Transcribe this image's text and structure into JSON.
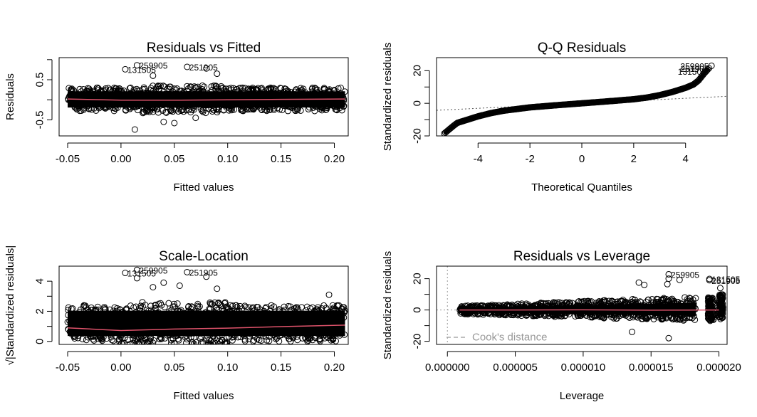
{
  "chart_data": [
    {
      "type": "scatter",
      "title": "Residuals vs Fitted",
      "xlabel": "Fitted values",
      "ylabel": "Residuals",
      "xlim": [
        -0.058,
        0.213
      ],
      "ylim": [
        -0.9,
        1.05
      ],
      "xticks": [
        -0.05,
        0.0,
        0.05,
        0.1,
        0.15,
        0.2
      ],
      "xtick_labels": [
        "-0.05",
        "0.00",
        "0.05",
        "0.10",
        "0.15",
        "0.20"
      ],
      "yticks": [
        -0.5,
        0,
        0.5,
        1.0
      ],
      "ytick_labels": [
        "-0.5",
        "",
        "0.5",
        ""
      ],
      "grid": false,
      "mass": {
        "x_range": [
          -0.05,
          0.21
        ],
        "band": [
          -0.28,
          0.3
        ],
        "spread_boost": [
          0.02,
          0.1
        ]
      },
      "outliers": [
        {
          "x": 0.015,
          "y": 0.86,
          "label": "259905"
        },
        {
          "x": 0.004,
          "y": 0.76,
          "label": "131505"
        },
        {
          "x": 0.062,
          "y": 0.82,
          "label": "251905"
        },
        {
          "x": 0.013,
          "y": -0.74,
          "label": ""
        },
        {
          "x": 0.04,
          "y": -0.55,
          "label": ""
        },
        {
          "x": 0.05,
          "y": -0.58,
          "label": ""
        },
        {
          "x": 0.07,
          "y": -0.45,
          "label": ""
        },
        {
          "x": 0.09,
          "y": 0.65,
          "label": ""
        },
        {
          "x": 0.08,
          "y": 0.78,
          "label": ""
        },
        {
          "x": 0.03,
          "y": 0.6,
          "label": ""
        }
      ],
      "smooth_line": {
        "color": "#df536b",
        "x": [
          -0.05,
          0.0,
          0.05,
          0.1,
          0.15,
          0.21
        ],
        "y": [
          0.02,
          -0.01,
          -0.01,
          0.0,
          0.01,
          0.02
        ]
      }
    },
    {
      "type": "scatter",
      "title": "Q-Q Residuals",
      "xlabel": "Theoretical Quantiles",
      "ylabel": "Standardized residuals",
      "xlim": [
        -5.6,
        5.6
      ],
      "ylim": [
        -20,
        28
      ],
      "xticks": [
        -4,
        -2,
        0,
        2,
        4
      ],
      "xtick_labels": [
        "-4",
        "-2",
        "0",
        "2",
        "4"
      ],
      "yticks": [
        -20,
        -10,
        0,
        10,
        20
      ],
      "ytick_labels": [
        "-20",
        "",
        "0",
        "",
        "20"
      ],
      "grid": false,
      "reference_line": {
        "style": "dotted",
        "color": "#555555",
        "x": [
          -5.6,
          5.6
        ],
        "y": [
          -4.3,
          4.3
        ]
      },
      "qq_curve": {
        "x": [
          -5.3,
          -5.0,
          -4.8,
          -4.5,
          -4.0,
          -3.5,
          -3.0,
          -2.5,
          -2.0,
          -1.0,
          0.0,
          1.0,
          2.0,
          2.5,
          3.0,
          3.5,
          4.0,
          4.3,
          4.5,
          4.7,
          4.9
        ],
        "y": [
          -18.5,
          -14.5,
          -12.0,
          -10.5,
          -8.0,
          -6.0,
          -4.5,
          -3.5,
          -2.5,
          -1.2,
          0.0,
          1.2,
          2.5,
          3.5,
          5.0,
          7.0,
          9.5,
          11.5,
          14.0,
          18.0,
          21.5
        ]
      },
      "outliers": [
        {
          "x": 5.0,
          "y": 23.0,
          "label": ""
        }
      ],
      "point_labels": [
        {
          "x": 3.8,
          "y": 22.5,
          "text": "259905"
        },
        {
          "x": 3.8,
          "y": 21.0,
          "text": "251905"
        },
        {
          "x": 3.7,
          "y": 19.3,
          "text": "131505"
        }
      ]
    },
    {
      "type": "scatter",
      "title": "Scale-Location",
      "xlabel": "Fitted values",
      "ylabel": "√|Standardized residuals|",
      "xlim": [
        -0.058,
        0.213
      ],
      "ylim": [
        -0.2,
        5.0
      ],
      "xticks": [
        -0.05,
        0.0,
        0.05,
        0.1,
        0.15,
        0.2
      ],
      "xtick_labels": [
        "-0.05",
        "0.00",
        "0.05",
        "0.10",
        "0.15",
        "0.20"
      ],
      "yticks": [
        0,
        1,
        2,
        3,
        4
      ],
      "ytick_labels": [
        "0",
        "",
        "2",
        "",
        "4"
      ],
      "grid": false,
      "mass": {
        "x_range": [
          -0.05,
          0.21
        ],
        "band": [
          0.0,
          2.4
        ],
        "spread_boost": [
          0.0,
          0.1
        ]
      },
      "outliers": [
        {
          "x": 0.015,
          "y": 4.75,
          "label": "259905"
        },
        {
          "x": 0.004,
          "y": 4.55,
          "label": "131505"
        },
        {
          "x": 0.062,
          "y": 4.6,
          "label": "251905"
        },
        {
          "x": 0.015,
          "y": 4.2,
          "label": ""
        },
        {
          "x": 0.04,
          "y": 3.9,
          "label": ""
        },
        {
          "x": 0.08,
          "y": 4.3,
          "label": ""
        },
        {
          "x": 0.03,
          "y": 3.6,
          "label": ""
        },
        {
          "x": 0.055,
          "y": 3.7,
          "label": ""
        },
        {
          "x": 0.09,
          "y": 3.5,
          "label": ""
        },
        {
          "x": 0.195,
          "y": 3.1,
          "label": ""
        }
      ],
      "smooth_line": {
        "color": "#df536b",
        "x": [
          -0.05,
          0.0,
          0.05,
          0.1,
          0.15,
          0.21
        ],
        "y": [
          0.9,
          0.72,
          0.82,
          0.88,
          0.98,
          1.08
        ]
      }
    },
    {
      "type": "scatter",
      "title": "Residuals vs Leverage",
      "xlabel": "Leverage",
      "ylabel": "Standardized residuals",
      "xlim": [
        -8e-07,
        2.06e-05
      ],
      "ylim": [
        -22,
        28
      ],
      "xticks": [
        0.0,
        5e-06,
        1e-05,
        1.5e-05,
        2e-05
      ],
      "xtick_labels": [
        "0.000000",
        "0.000005",
        "0.000010",
        "0.000015",
        "0.000020"
      ],
      "yticks": [
        -20,
        -10,
        0,
        10,
        20
      ],
      "ytick_labels": [
        "-20",
        "",
        "0",
        "",
        "20"
      ],
      "grid": false,
      "mass": {
        "x_range": [
          9e-07,
          1.83e-05
        ],
        "band_start": [
          -2.5,
          2.5
        ],
        "band_end": [
          -7.0,
          8.5
        ],
        "clusters": [
          {
            "x_range": [
              1.92e-05,
              1.96e-05
            ],
            "band": [
              -7.0,
              8.0
            ]
          },
          {
            "x_range": [
              2e-05,
              2.03e-05
            ],
            "band": [
              -6.0,
              10.0
            ]
          }
        ]
      },
      "outliers": [
        {
          "x": 1.63e-05,
          "y": 22.8,
          "label": "259905"
        },
        {
          "x": 1.93e-05,
          "y": 19.8,
          "label": "131505"
        },
        {
          "x": 1.93e-05,
          "y": 19.0,
          "label": "251905"
        },
        {
          "x": 1.63e-05,
          "y": 20.0,
          "label": ""
        },
        {
          "x": 1.62e-05,
          "y": 16.5,
          "label": ""
        },
        {
          "x": 1.71e-05,
          "y": 19.2,
          "label": ""
        },
        {
          "x": 1.63e-05,
          "y": -18.0,
          "label": ""
        },
        {
          "x": 1.36e-05,
          "y": -14.0,
          "label": ""
        },
        {
          "x": 1.41e-05,
          "y": 17.5,
          "label": ""
        },
        {
          "x": 1.45e-05,
          "y": 16.0,
          "label": ""
        },
        {
          "x": 2.01e-05,
          "y": 14.0,
          "label": ""
        }
      ],
      "smooth_line": {
        "color": "#df536b",
        "x": [
          9e-07,
          5e-06,
          1e-05,
          1.5e-05,
          2e-05
        ],
        "y": [
          0.0,
          0.0,
          0.1,
          -0.1,
          0.0
        ]
      },
      "reference_lines": [
        {
          "axis": "x",
          "value": 0.0,
          "style": "dotted",
          "color": "#999999"
        },
        {
          "axis": "y",
          "value": 0.0,
          "style": "dotted",
          "color": "#999999"
        }
      ],
      "legend": {
        "placement": "bottom-left",
        "text": "Cook's distance",
        "line_style": "dashed",
        "color": "#999999"
      }
    }
  ]
}
